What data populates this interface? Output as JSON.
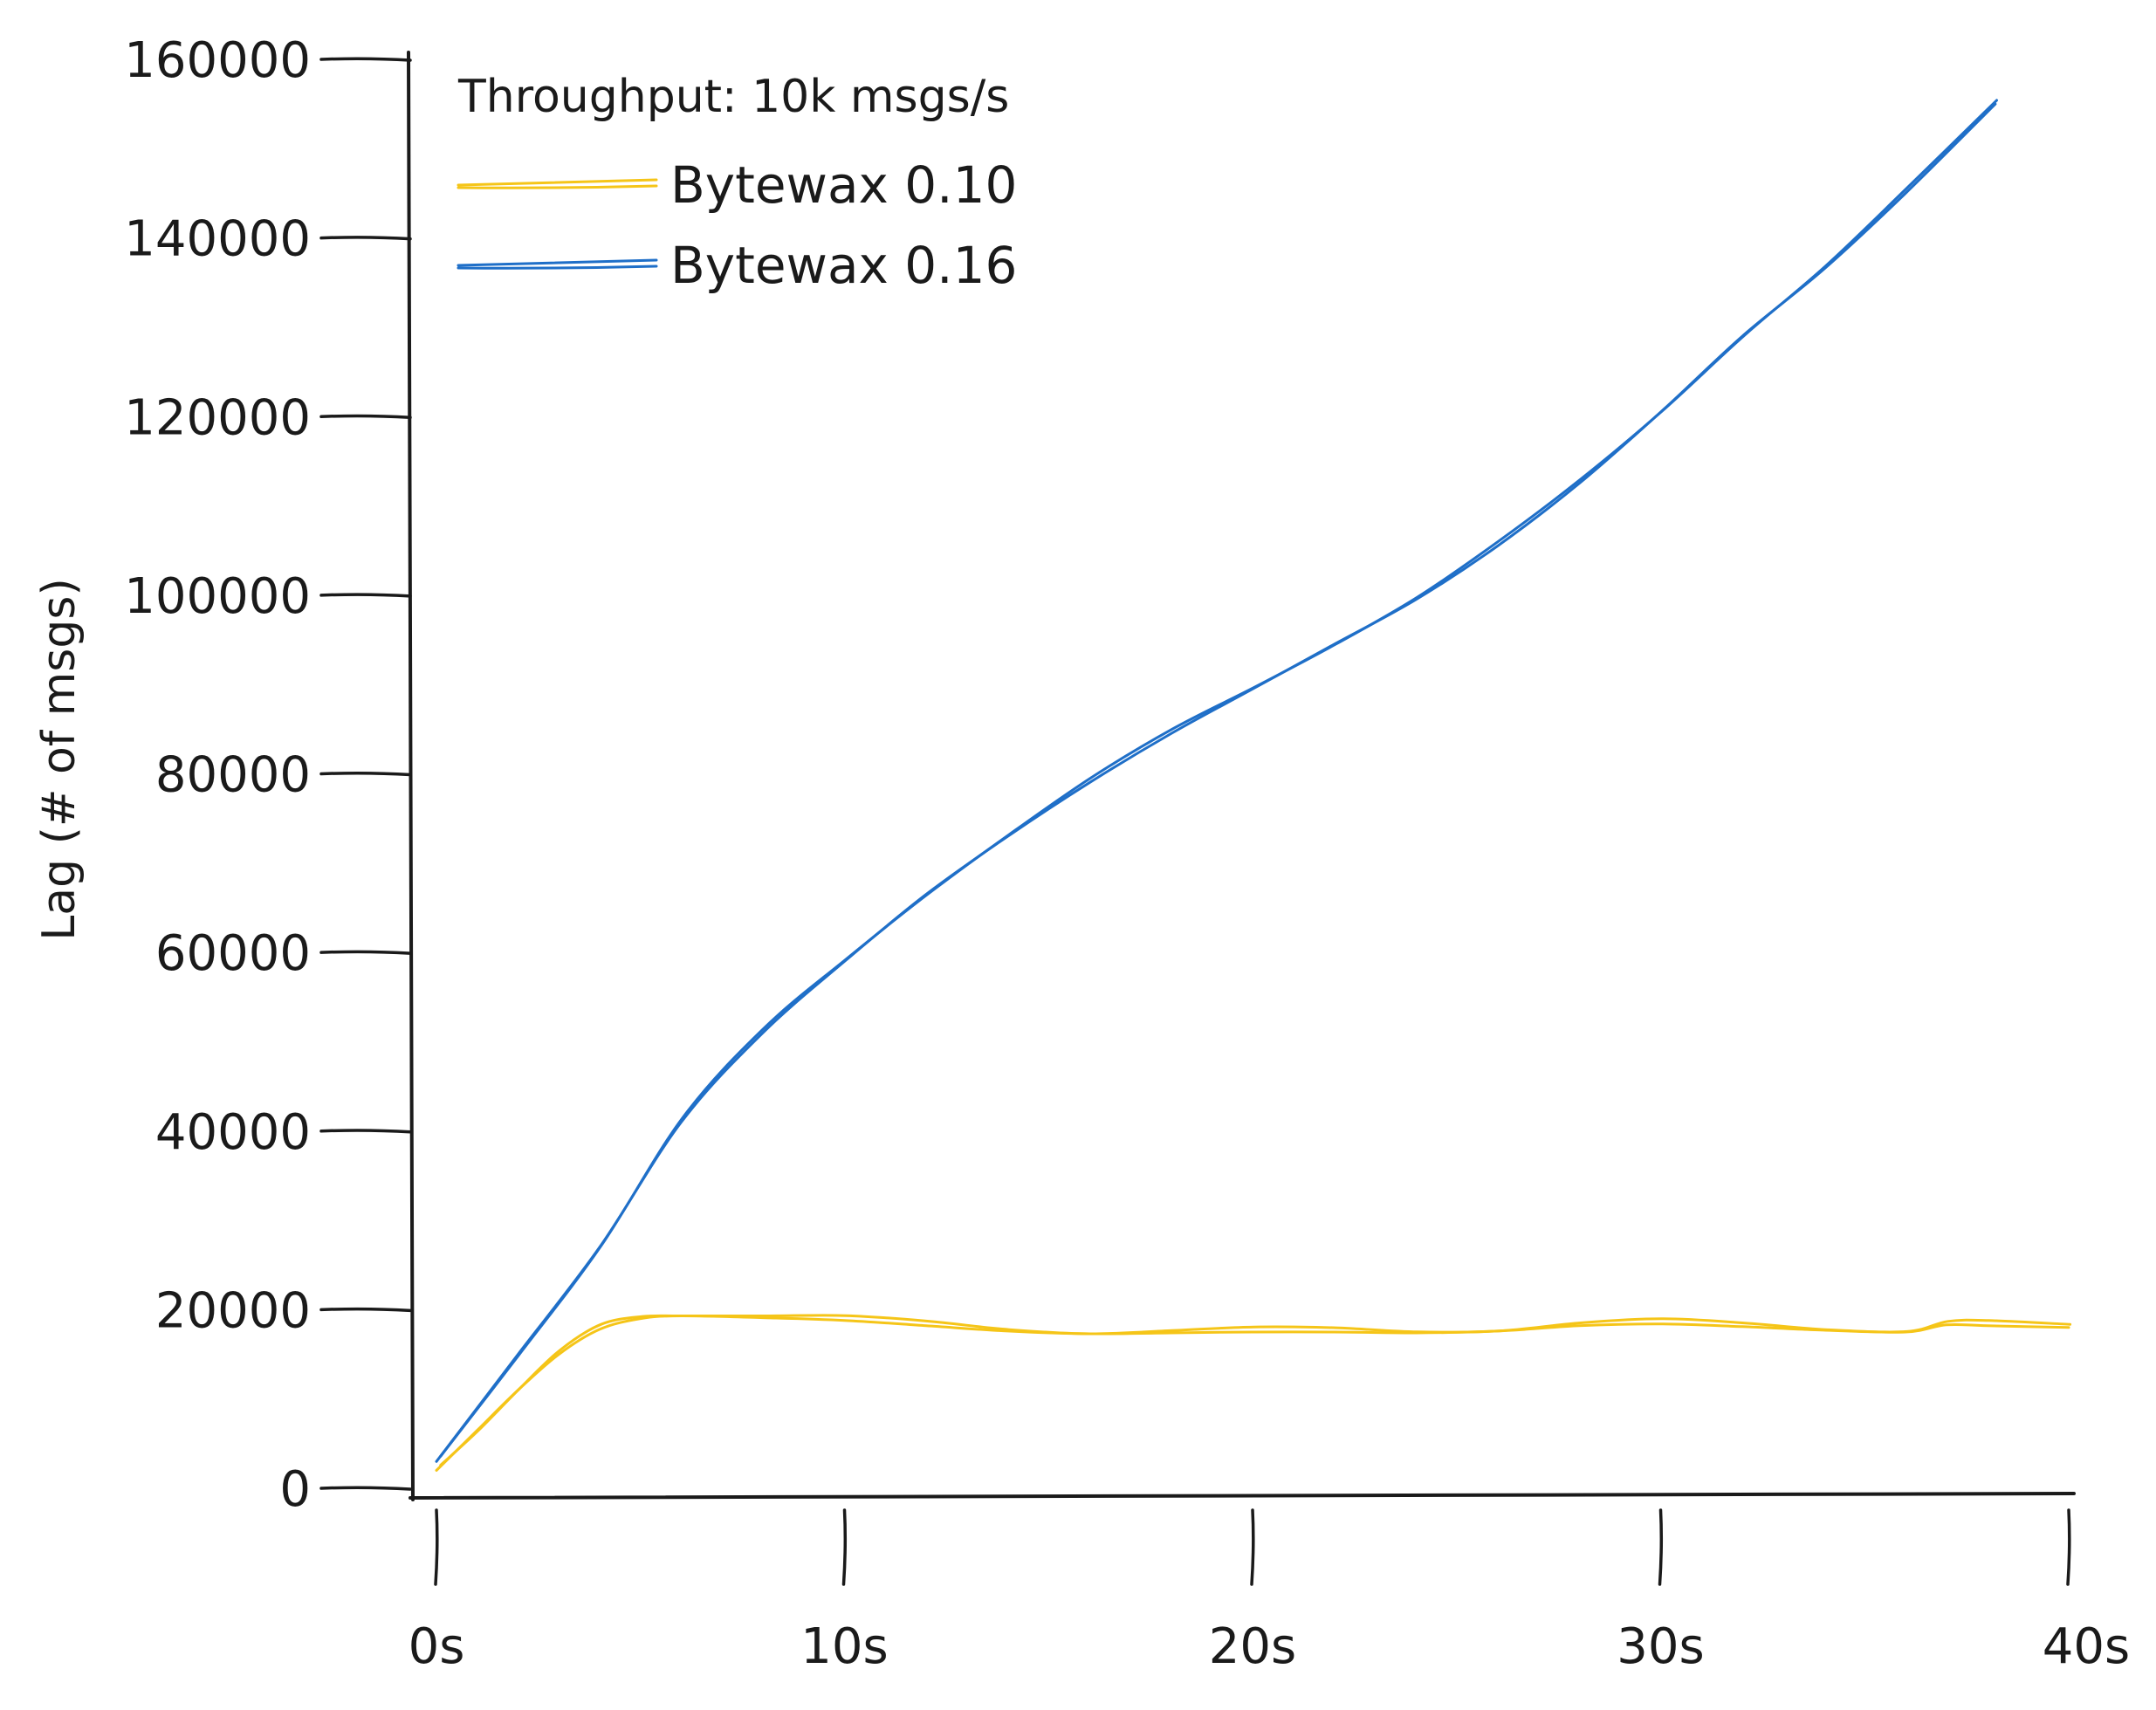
{
  "chart_data": {
    "type": "line",
    "title": "",
    "xlabel": "",
    "ylabel": "Lag (# of msgs)",
    "legend_title": "Throughput: 10k msgs/s",
    "legend_position": "top-left",
    "grid": false,
    "xlim": [
      0,
      40
    ],
    "ylim": [
      0,
      160000
    ],
    "x_ticks": [
      0,
      10,
      20,
      30,
      40
    ],
    "x_tick_labels": [
      "0s",
      "10s",
      "20s",
      "30s",
      "40s"
    ],
    "y_ticks": [
      0,
      20000,
      40000,
      60000,
      80000,
      100000,
      120000,
      140000,
      160000
    ],
    "y_tick_labels": [
      "0",
      "20000",
      "40000",
      "60000",
      "80000",
      "100000",
      "120000",
      "140000",
      "160000"
    ],
    "series": [
      {
        "name": "Bytewax 0.10",
        "color": "#f5c518",
        "x": [
          0,
          1,
          2,
          3,
          4,
          5,
          6,
          8,
          10,
          12,
          14,
          16,
          18,
          20,
          22,
          24,
          26,
          28,
          30,
          32,
          34,
          36,
          37,
          38,
          40
        ],
        "y": [
          2000,
          6500,
          11000,
          15000,
          17800,
          19000,
          19300,
          19100,
          18800,
          18200,
          17600,
          17300,
          17400,
          17500,
          17500,
          17400,
          17600,
          18200,
          18400,
          18100,
          17700,
          17500,
          18300,
          18200,
          18000
        ]
      },
      {
        "name": "Bytewax 0.16",
        "color": "#1f6fc8",
        "x": [
          0,
          2,
          4,
          6,
          8,
          10,
          12,
          14,
          16,
          18,
          20,
          22,
          24,
          26,
          28,
          30,
          32,
          34,
          36,
          38.2
        ],
        "y": [
          3000,
          15000,
          27000,
          41000,
          51000,
          59000,
          66500,
          73000,
          79000,
          84500,
          89500,
          94500,
          99500,
          105500,
          112500,
          120500,
          129000,
          136500,
          145000,
          155000
        ]
      }
    ]
  }
}
